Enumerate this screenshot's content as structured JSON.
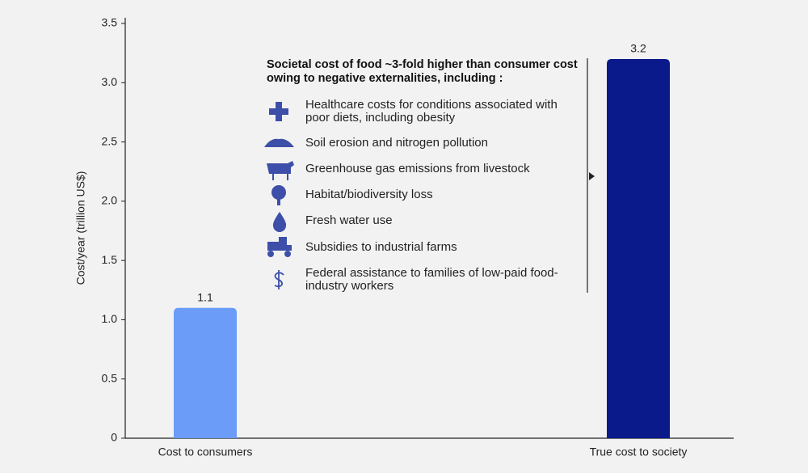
{
  "chart_data": {
    "type": "bar",
    "y_label": "Cost/year (trillion US$)",
    "categories": [
      "Cost to consumers",
      "True cost to society"
    ],
    "values": [
      1.1,
      3.2
    ],
    "colors": [
      "#6b9cf8",
      "#0b1a8a"
    ],
    "ylim": [
      0,
      3.5
    ],
    "yticks": [
      0,
      0.5,
      {
        "value": 1,
        "label": "1.0"
      },
      1.5,
      {
        "value": 2,
        "label": "2.0"
      },
      2.5,
      {
        "value": 3,
        "label": "3.0"
      },
      3.5
    ],
    "annotation": {
      "title": "Societal cost of food ~3-fold higher than consumer cost owing to negative externalities, including :",
      "items": [
        "Healthcare costs for conditions associated with poor diets, including obesity",
        "Soil erosion and nitrogen pollution",
        "Greenhouse gas emissions from livestock",
        "Habitat/biodiversity loss",
        "Fresh water use",
        "Subsidies to industrial farms",
        "Federal assistance to families of low-paid food-industry workers"
      ]
    }
  }
}
